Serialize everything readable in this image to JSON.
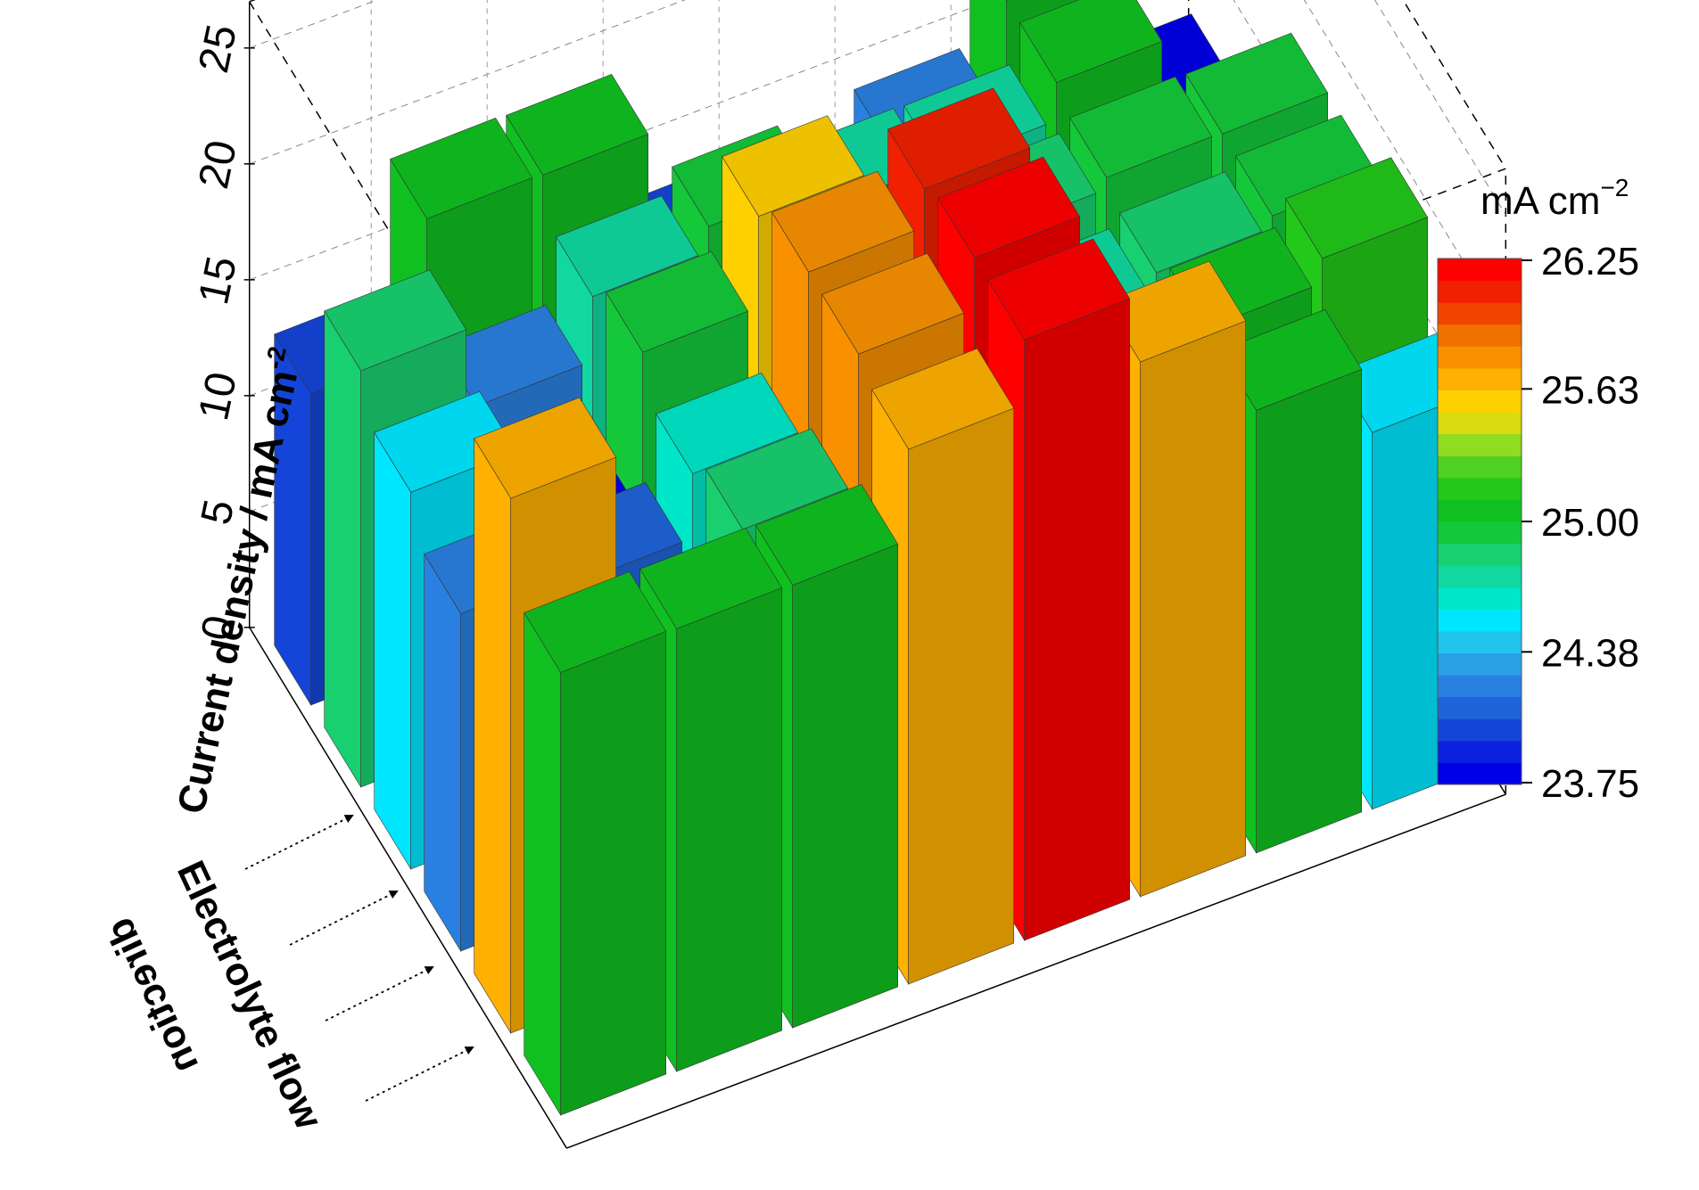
{
  "chart_data": {
    "type": "bar3d",
    "z_axis": {
      "label": "Current density / mA cm",
      "label_exponent": "-2",
      "ticks": [
        "0",
        "5",
        "10",
        "15",
        "20",
        "25"
      ],
      "range": [
        0,
        27
      ]
    },
    "flow_label": {
      "line1": "Electrolyte flow",
      "line2": "direction"
    },
    "colorbar": {
      "title": "mA cm",
      "title_exponent": "−2",
      "range": [
        23.75,
        26.25
      ],
      "ticks": [
        "26.25",
        "25.63",
        "25.00",
        "24.38",
        "23.75"
      ],
      "tick_values": [
        26.25,
        25.63,
        25.0,
        24.38,
        23.75
      ],
      "palette": [
        "#0000e6",
        "#0a22e0",
        "#1445d8",
        "#1e64d8",
        "#2a80e0",
        "#2aa0e6",
        "#22c4ee",
        "#00e6ff",
        "#00e6c8",
        "#10d8a0",
        "#18d070",
        "#14c83a",
        "#10c020",
        "#22c81a",
        "#50d020",
        "#90dc20",
        "#d8dc10",
        "#ffd000",
        "#ffb000",
        "#f89000",
        "#f07000",
        "#f04400",
        "#f02000",
        "#ff0000"
      ],
      "grid": "off"
    },
    "grid": "on",
    "rows": 6,
    "columns": 8,
    "values": [
      [
        25.0,
        25.0,
        25.0,
        25.7,
        26.2,
        25.7,
        25.0,
        24.5
      ],
      [
        25.7,
        23.9,
        24.8,
        25.8,
        26.2,
        24.9,
        25.0,
        25.2
      ],
      [
        24.2,
        24.1,
        24.6,
        25.8,
        26.1,
        24.7,
        24.8,
        24.9
      ],
      [
        24.5,
        23.8,
        24.9,
        25.6,
        24.9,
        24.8,
        24.9,
        24.9
      ],
      [
        24.8,
        24.2,
        24.7,
        24.9,
        24.7,
        24.7,
        25.0,
        24.0
      ],
      [
        24.0,
        25.0,
        25.0,
        24.0,
        23.9,
        24.2,
        25.0,
        23.8
      ]
    ]
  }
}
